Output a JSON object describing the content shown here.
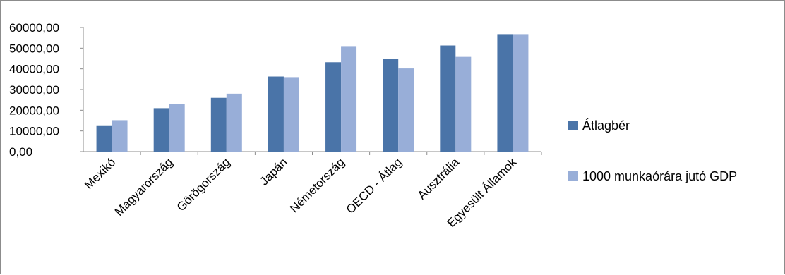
{
  "chart_data": {
    "type": "bar",
    "categories": [
      "Mexikó",
      "Magyarország",
      "Görögország",
      "Japán",
      "Németország",
      "OECD - Átlag",
      "Ausztrália",
      "Egyesült Államok"
    ],
    "series": [
      {
        "name": "Átlagbér",
        "color": "#4a74a8",
        "values": [
          12700,
          21000,
          26000,
          36300,
          43200,
          44800,
          51300,
          56800
        ]
      },
      {
        "name": "1000 munkaórára jutó GDP",
        "color": "#98aed8",
        "values": [
          15200,
          23000,
          28000,
          36000,
          51000,
          40200,
          45800,
          56800
        ]
      }
    ],
    "yticks": [
      "0,00",
      "10000,00",
      "20000,00",
      "30000,00",
      "40000,00",
      "50000,00",
      "60000,00"
    ],
    "ylim": [
      0,
      60000
    ],
    "grid": false,
    "legend_position": "right"
  }
}
